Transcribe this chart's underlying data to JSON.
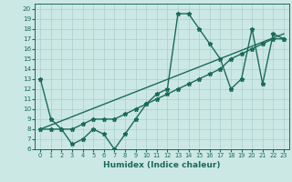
{
  "title": "",
  "xlabel": "Humidex (Indice chaleur)",
  "bg_color": "#cce8e4",
  "line_color": "#1a6b5a",
  "grid_color": "#aacfcb",
  "xlim": [
    -0.5,
    23.5
  ],
  "ylim": [
    6,
    20.5
  ],
  "xticks": [
    0,
    1,
    2,
    3,
    4,
    5,
    6,
    7,
    8,
    9,
    10,
    11,
    12,
    13,
    14,
    15,
    16,
    17,
    18,
    19,
    20,
    21,
    22,
    23
  ],
  "yticks": [
    6,
    7,
    8,
    9,
    10,
    11,
    12,
    13,
    14,
    15,
    16,
    17,
    18,
    19,
    20
  ],
  "line1_x": [
    0,
    1,
    2,
    3,
    4,
    5,
    6,
    7,
    8,
    9,
    10,
    11,
    12,
    13,
    14,
    15,
    16,
    17,
    18,
    19,
    20,
    21,
    22,
    23
  ],
  "line1_y": [
    13,
    9,
    8,
    6.5,
    7,
    8,
    7.5,
    6,
    7.5,
    9,
    10.5,
    11.5,
    12,
    19.5,
    19.5,
    18,
    16.5,
    15,
    12,
    13,
    18,
    12.5,
    17.5,
    17
  ],
  "line2_x": [
    0,
    1,
    2,
    3,
    4,
    5,
    6,
    7,
    8,
    9,
    10,
    11,
    12,
    13,
    14,
    15,
    16,
    17,
    18,
    19,
    20,
    21,
    22,
    23
  ],
  "line2_y": [
    8,
    8,
    8,
    8,
    8.5,
    9,
    9,
    9,
    9.5,
    10,
    10.5,
    11,
    11.5,
    12,
    12.5,
    13,
    13.5,
    14,
    15,
    15.5,
    16,
    16.5,
    17,
    17
  ],
  "line3_x": [
    0,
    23
  ],
  "line3_y": [
    8,
    17.5
  ],
  "markersize": 3.5,
  "linewidth": 1.0
}
